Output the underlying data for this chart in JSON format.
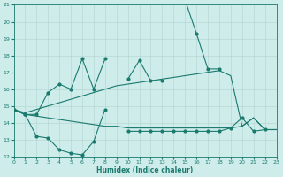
{
  "x": [
    0,
    1,
    2,
    3,
    4,
    5,
    6,
    7,
    8,
    9,
    10,
    11,
    12,
    13,
    14,
    15,
    16,
    17,
    18,
    19,
    20,
    21,
    22,
    23
  ],
  "line_top": [
    14.8,
    14.5,
    14.5,
    15.8,
    16.3,
    16.0,
    17.8,
    16.0,
    17.8,
    null,
    16.6,
    17.7,
    16.5,
    16.5,
    null,
    21.3,
    19.3,
    17.2,
    17.2,
    null,
    null,
    null,
    null,
    null
  ],
  "line_upper_trend": [
    14.8,
    14.6,
    14.8,
    15.0,
    15.2,
    15.4,
    15.6,
    15.8,
    16.0,
    16.2,
    16.3,
    16.4,
    16.5,
    16.6,
    16.7,
    16.8,
    16.9,
    17.0,
    17.1,
    16.8,
    13.8,
    14.3,
    13.6,
    13.6
  ],
  "line_lower_trend": [
    14.8,
    14.5,
    14.4,
    14.3,
    14.2,
    14.1,
    14.0,
    13.9,
    13.8,
    13.8,
    13.7,
    13.7,
    13.7,
    13.7,
    13.7,
    13.7,
    13.7,
    13.7,
    13.7,
    13.7,
    13.8,
    14.3,
    13.6,
    13.6
  ],
  "line_bot": [
    14.8,
    14.5,
    13.2,
    13.1,
    12.4,
    12.2,
    12.1,
    12.9,
    14.8,
    null,
    13.5,
    13.5,
    13.5,
    13.5,
    13.5,
    13.5,
    13.5,
    13.5,
    13.5,
    13.7,
    14.3,
    13.5,
    13.6,
    null
  ],
  "xlabel": "Humidex (Indice chaleur)",
  "ylim": [
    12,
    21
  ],
  "yticks": [
    12,
    13,
    14,
    15,
    16,
    17,
    18,
    19,
    20,
    21
  ],
  "xlim": [
    0,
    23
  ],
  "xticks": [
    0,
    1,
    2,
    3,
    4,
    5,
    6,
    7,
    8,
    9,
    10,
    11,
    12,
    13,
    14,
    15,
    16,
    17,
    18,
    19,
    20,
    21,
    22,
    23
  ],
  "line_color": "#1a7a6e",
  "bg_color": "#ceecea",
  "grid_color": "#b8d8d5"
}
